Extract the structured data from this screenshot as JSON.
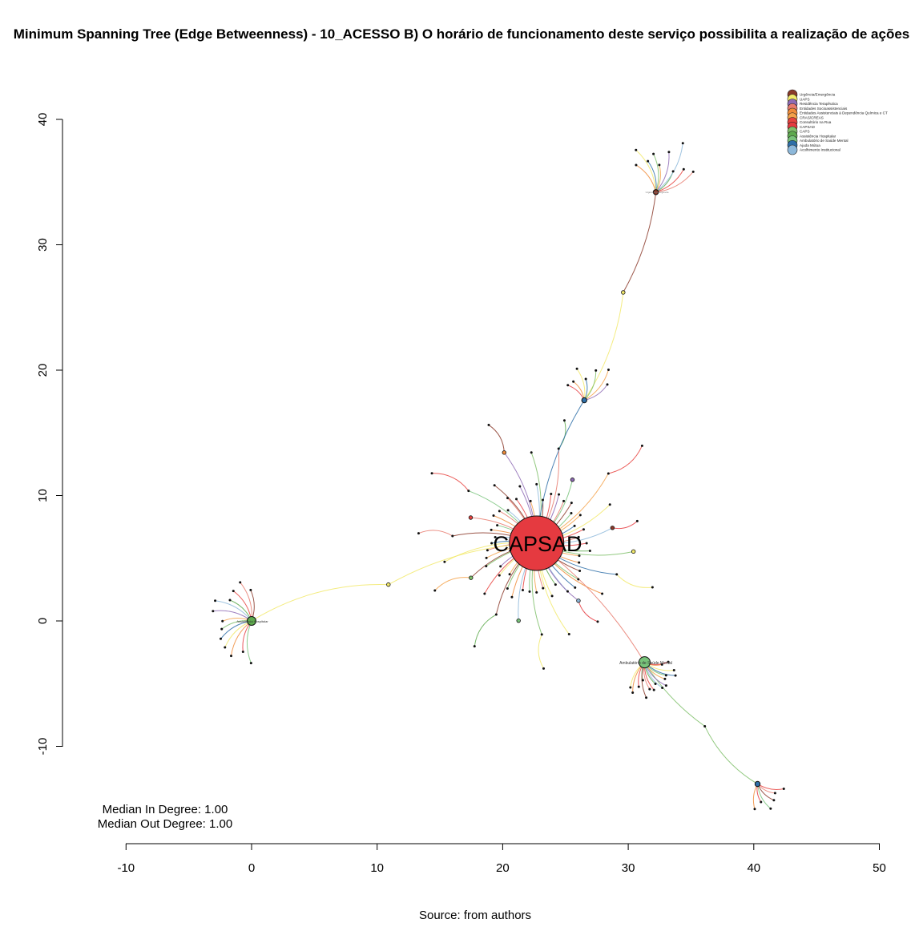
{
  "title": "Minimum Spanning Tree (Edge Betweenness) - 10_ACESSO B) O horário de funcionamento deste serviço possibilita a realização de ações",
  "caption": "Source: from authors",
  "stats": {
    "median_in": "Median In Degree: 1.00",
    "median_out": "Median Out Degree: 1.00"
  },
  "axes": {
    "x_ticks": [
      "-10",
      "0",
      "10",
      "20",
      "30",
      "40",
      "50"
    ],
    "y_ticks": [
      "-10",
      "0",
      "10",
      "20",
      "30",
      "40"
    ],
    "xlim": [
      -10,
      50
    ],
    "ylim": [
      -10,
      40
    ]
  },
  "legend": [
    {
      "label": "Urgência/Emergência",
      "color": "#8B3A2A"
    },
    {
      "label": "UAPS",
      "color": "#F2E96B"
    },
    {
      "label": "Residência Terapêutica",
      "color": "#8E6BB5"
    },
    {
      "label": "Entidades Socioassistenciais",
      "color": "#E87B6E"
    },
    {
      "label": "Entidades Assistenciais à Dependência Química e CT",
      "color": "#F08C3A"
    },
    {
      "label": "CRAS/CREAS",
      "color": "#F4A24A"
    },
    {
      "label": "Consultório na Rua",
      "color": "#E8433F"
    },
    {
      "label": "CAPSAD",
      "color": "#E53A40"
    },
    {
      "label": "CAPS",
      "color": "#7FBF6A"
    },
    {
      "label": "Assistência Hospitalar",
      "color": "#5EAA4E"
    },
    {
      "label": "Ambulatório de Saúde Mental",
      "color": "#78C37A"
    },
    {
      "label": "Ajuda Mútua",
      "color": "#2E6FA8"
    },
    {
      "label": "Acolhimento Institucional",
      "color": "#8DB8DA"
    }
  ],
  "graph": {
    "center": {
      "label": "CAPSAD",
      "x": 22.7,
      "y": 6.2,
      "color": "#E53A40"
    },
    "hubs": [
      {
        "id": "hosp",
        "label": "Assistência Hospitalar",
        "x": 0.0,
        "y": 0.0,
        "color": "#5EAA4E",
        "size": "medium"
      },
      {
        "id": "amb",
        "label": "Ambulatório de Saúde Mental",
        "x": 31.3,
        "y": -3.3,
        "color": "#78C37A",
        "size": "large"
      },
      {
        "id": "aju",
        "label": "Ajuda Mútua",
        "x": 26.5,
        "y": 17.6,
        "color": "#2E6FA8",
        "size": "small"
      },
      {
        "id": "urg",
        "label": "Urgência/Emergência",
        "x": 32.2,
        "y": 34.2,
        "color": "#8B3A2A",
        "size": "small"
      },
      {
        "id": "aju2",
        "label": "Ajuda Mútua",
        "x": 40.3,
        "y": -13.0,
        "color": "#2E6FA8",
        "size": "small"
      }
    ]
  }
}
